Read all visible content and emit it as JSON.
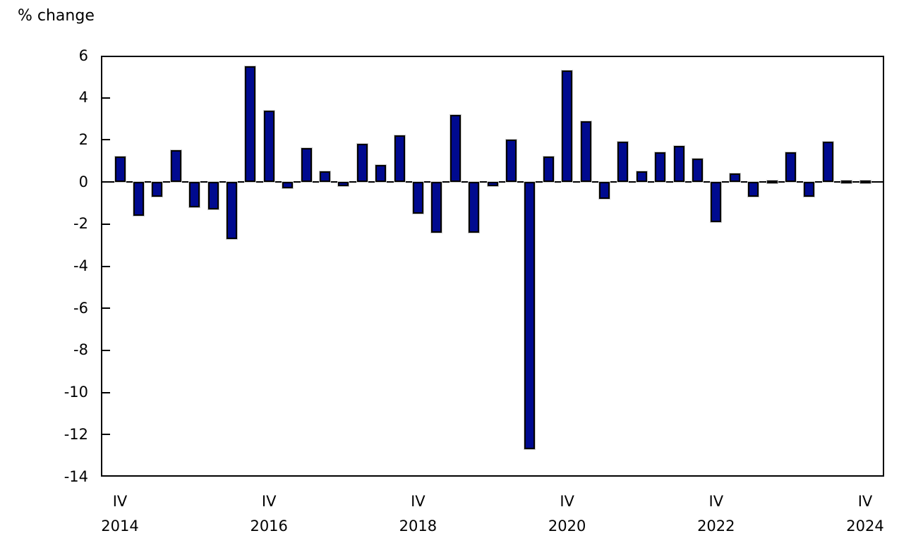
{
  "title": "% change",
  "colors": {
    "bar_fill": "#000a8f",
    "bar_stroke": "#000000",
    "axis": "#000000",
    "background": "#ffffff"
  },
  "chart_data": {
    "type": "bar",
    "title": "% change",
    "xlabel": "",
    "ylabel": "% change",
    "ylim": [
      -14,
      6
    ],
    "yticks": [
      6,
      4,
      2,
      0,
      -2,
      -4,
      -6,
      -8,
      -10,
      -12,
      -14
    ],
    "grid": false,
    "legend": false,
    "frequency": "quarterly",
    "start_period": "2014 IV",
    "end_period": "2024 IV",
    "values": [
      1.2,
      -1.6,
      -0.7,
      1.5,
      -1.2,
      -1.3,
      -2.7,
      5.5,
      3.4,
      -0.3,
      1.6,
      0.5,
      -0.2,
      1.8,
      0.8,
      2.2,
      -1.5,
      -2.4,
      3.2,
      -2.4,
      -0.2,
      2.0,
      -12.7,
      1.2,
      5.3,
      2.9,
      -0.8,
      1.9,
      0.5,
      1.4,
      1.7,
      1.1,
      -1.9,
      0.4,
      -0.7,
      0.0,
      1.4,
      -0.7,
      1.9,
      0.0,
      0.0
    ],
    "x_tick_positions": [
      0,
      8,
      16,
      24,
      32,
      40
    ],
    "x_tick_labels": [
      {
        "quarter": "IV",
        "year": "2014"
      },
      {
        "quarter": "IV",
        "year": "2016"
      },
      {
        "quarter": "IV",
        "year": "2018"
      },
      {
        "quarter": "IV",
        "year": "2020"
      },
      {
        "quarter": "IV",
        "year": "2022"
      },
      {
        "quarter": "IV",
        "year": "2024"
      }
    ]
  }
}
